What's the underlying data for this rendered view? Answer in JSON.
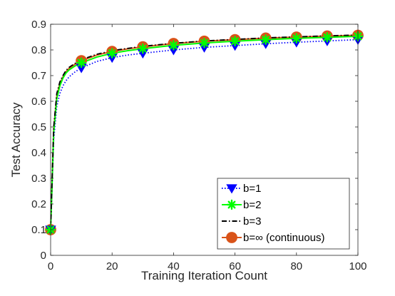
{
  "chart_data": {
    "type": "line",
    "title": "",
    "xlabel": "Training Iteration Count",
    "ylabel": "Test Accuracy",
    "xlim": [
      0,
      100
    ],
    "ylim": [
      0,
      0.9
    ],
    "xticks": [
      "0",
      "20",
      "40",
      "60",
      "80",
      "100"
    ],
    "yticks": [
      "0",
      "0.1",
      "0.2",
      "0.3",
      "0.4",
      "0.5",
      "0.6",
      "0.7",
      "0.8",
      "0.9"
    ],
    "grid": false,
    "legend_position": "bottom-right",
    "series": [
      {
        "name": "b=1",
        "color": "#0000ff",
        "line_style": "dotted",
        "marker": "triangle-down",
        "x": [
          0,
          1,
          2,
          3,
          4,
          5,
          6,
          8,
          10,
          15,
          20,
          25,
          30,
          40,
          50,
          60,
          70,
          80,
          90,
          100
        ],
        "y": [
          0.1,
          0.45,
          0.58,
          0.63,
          0.66,
          0.68,
          0.695,
          0.715,
          0.73,
          0.755,
          0.77,
          0.78,
          0.787,
          0.8,
          0.81,
          0.817,
          0.824,
          0.83,
          0.835,
          0.84
        ],
        "marker_x": [
          0,
          10,
          20,
          30,
          40,
          50,
          60,
          70,
          80,
          90,
          100
        ]
      },
      {
        "name": "b=2",
        "color": "#00ff00",
        "line_style": "solid",
        "marker": "asterisk",
        "x": [
          0,
          1,
          2,
          3,
          4,
          5,
          6,
          8,
          10,
          15,
          20,
          25,
          30,
          40,
          50,
          60,
          70,
          80,
          90,
          100
        ],
        "y": [
          0.1,
          0.48,
          0.61,
          0.66,
          0.69,
          0.71,
          0.722,
          0.738,
          0.75,
          0.772,
          0.787,
          0.797,
          0.805,
          0.818,
          0.827,
          0.834,
          0.84,
          0.845,
          0.849,
          0.853
        ],
        "marker_x": [
          0,
          10,
          20,
          30,
          40,
          50,
          60,
          70,
          80,
          90,
          100
        ]
      },
      {
        "name": "b=3",
        "color": "#000000",
        "line_style": "dashdot",
        "marker": "none",
        "x": [
          0,
          1,
          2,
          3,
          4,
          5,
          6,
          8,
          10,
          15,
          20,
          25,
          30,
          40,
          50,
          60,
          70,
          80,
          90,
          100
        ],
        "y": [
          0.1,
          0.5,
          0.63,
          0.675,
          0.7,
          0.72,
          0.732,
          0.748,
          0.762,
          0.783,
          0.797,
          0.806,
          0.814,
          0.826,
          0.835,
          0.841,
          0.847,
          0.851,
          0.855,
          0.858
        ],
        "marker_x": []
      },
      {
        "name": "b=∞ (continuous)",
        "color": "#d95319",
        "line_style": "solid",
        "marker": "circle",
        "x": [
          0,
          1,
          2,
          3,
          4,
          5,
          6,
          8,
          10,
          15,
          20,
          25,
          30,
          40,
          50,
          60,
          70,
          80,
          90,
          100
        ],
        "y": [
          0.1,
          0.49,
          0.62,
          0.668,
          0.695,
          0.715,
          0.728,
          0.745,
          0.758,
          0.78,
          0.794,
          0.804,
          0.812,
          0.825,
          0.834,
          0.84,
          0.846,
          0.85,
          0.854,
          0.857
        ],
        "marker_x": [
          0,
          10,
          20,
          30,
          40,
          50,
          60,
          70,
          80,
          90,
          100
        ]
      }
    ]
  }
}
